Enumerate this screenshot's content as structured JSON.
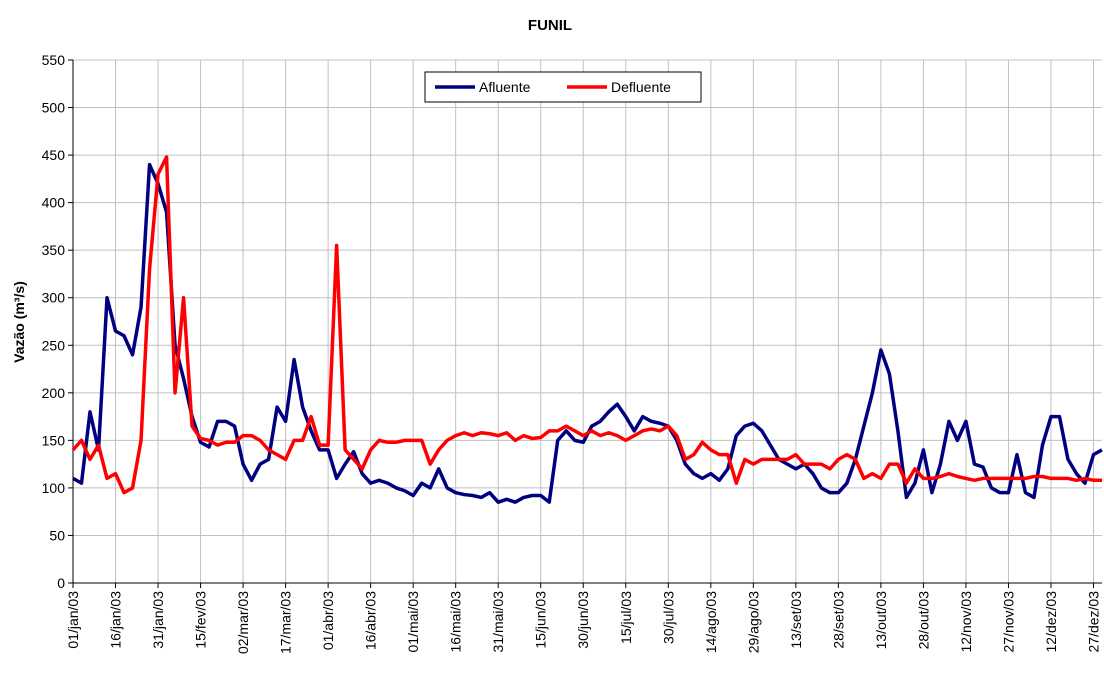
{
  "chart_data": {
    "type": "line",
    "title": "FUNIL",
    "y_label": "Vazão (m³/s)",
    "categories": [
      "01/jan/03",
      null,
      null,
      null,
      null,
      "16/jan/03",
      null,
      null,
      null,
      null,
      "31/jan/03",
      null,
      null,
      null,
      null,
      "15/fev/03",
      null,
      null,
      null,
      null,
      "02/mar/03",
      null,
      null,
      null,
      null,
      "17/mar/03",
      null,
      null,
      null,
      null,
      "01/abr/03",
      null,
      null,
      null,
      null,
      "16/abr/03",
      null,
      null,
      null,
      null,
      "01/mai/03",
      null,
      null,
      null,
      null,
      "16/mai/03",
      null,
      null,
      null,
      null,
      "31/mai/03",
      null,
      null,
      null,
      null,
      "15/jun/03",
      null,
      null,
      null,
      null,
      "30/jun/03",
      null,
      null,
      null,
      null,
      "15/jul/03",
      null,
      null,
      null,
      null,
      "30/jul/03",
      null,
      null,
      null,
      null,
      "14/ago/03",
      null,
      null,
      null,
      null,
      "29/ago/03",
      null,
      null,
      null,
      null,
      "13/set/03",
      null,
      null,
      null,
      null,
      "28/set/03",
      null,
      null,
      null,
      null,
      "13/out/03",
      null,
      null,
      null,
      null,
      "28/out/03",
      null,
      null,
      null,
      null,
      "12/nov/03",
      null,
      null,
      null,
      null,
      "27/nov/03",
      null,
      null,
      null,
      null,
      "12/dez/03",
      null,
      null,
      null,
      null,
      "27/dez/03",
      null
    ],
    "series": [
      {
        "name": "Afluente",
        "color": "#000080",
        "values": [
          110,
          105,
          180,
          140,
          300,
          265,
          260,
          240,
          290,
          440,
          420,
          390,
          250,
          215,
          175,
          148,
          143,
          170,
          170,
          165,
          125,
          108,
          125,
          130,
          185,
          170,
          235,
          185,
          160,
          140,
          140,
          110,
          125,
          138,
          115,
          105,
          108,
          105,
          100,
          97,
          92,
          105,
          100,
          120,
          100,
          95,
          93,
          92,
          90,
          95,
          85,
          88,
          85,
          90,
          92,
          92,
          85,
          150,
          160,
          150,
          148,
          165,
          170,
          180,
          188,
          175,
          160,
          175,
          170,
          168,
          165,
          150,
          125,
          115,
          110,
          115,
          108,
          120,
          155,
          165,
          168,
          160,
          145,
          130,
          125,
          120,
          125,
          115,
          100,
          95,
          95,
          105,
          130,
          165,
          200,
          245,
          220,
          160,
          90,
          105,
          140,
          95,
          125,
          170,
          150,
          170,
          125,
          122,
          100,
          95,
          95,
          135,
          95,
          90,
          145,
          175,
          175,
          130,
          115,
          105,
          135,
          140
        ]
      },
      {
        "name": "Defluente",
        "color": "#ff0000",
        "values": [
          140,
          150,
          130,
          145,
          110,
          115,
          95,
          100,
          150,
          330,
          430,
          448,
          200,
          300,
          165,
          152,
          150,
          145,
          148,
          148,
          155,
          155,
          150,
          140,
          135,
          130,
          150,
          150,
          175,
          145,
          145,
          355,
          140,
          130,
          120,
          140,
          150,
          148,
          148,
          150,
          150,
          150,
          125,
          140,
          150,
          155,
          158,
          155,
          158,
          157,
          155,
          158,
          150,
          155,
          152,
          153,
          160,
          160,
          165,
          160,
          155,
          160,
          155,
          158,
          155,
          150,
          155,
          160,
          162,
          160,
          165,
          155,
          130,
          135,
          148,
          140,
          135,
          135,
          105,
          130,
          125,
          130,
          130,
          130,
          130,
          135,
          125,
          125,
          125,
          120,
          130,
          135,
          130,
          110,
          115,
          110,
          125,
          125,
          105,
          120,
          110,
          110,
          112,
          115,
          112,
          110,
          108,
          110,
          110,
          110,
          110,
          110,
          110,
          112,
          112,
          110,
          110,
          110,
          108,
          110,
          108,
          108
        ]
      }
    ],
    "ylim": [
      0,
      550
    ],
    "yticks": [
      0,
      50,
      100,
      150,
      200,
      250,
      300,
      350,
      400,
      450,
      500,
      550
    ],
    "grid": true,
    "legend": "top"
  }
}
